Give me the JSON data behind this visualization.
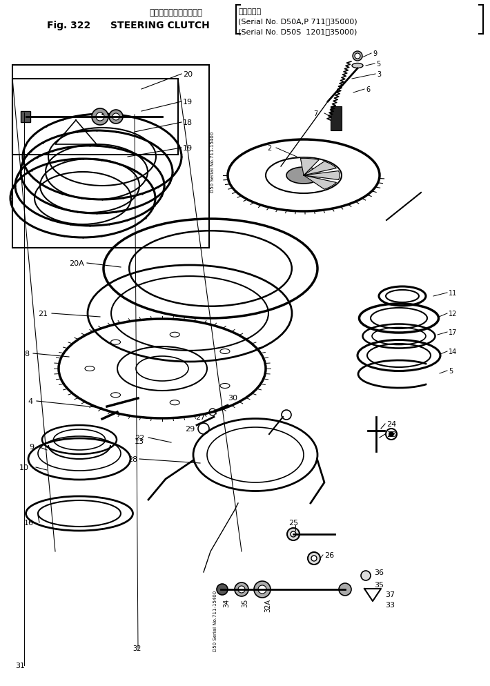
{
  "title_jp": "ステアリング　クラッチ",
  "title_en": "STEERING CLUTCH",
  "fig_num": "Fig. 322",
  "serial_label": "（適用号機",
  "serial_line2": "(Serial No. D50A,P 711～35000)",
  "serial_line3": "(Serial No. D50S  1201～35000)",
  "bg_color": "#ffffff",
  "line_color": "#000000",
  "fig_width": 7.1,
  "fig_height": 9.95,
  "dpi": 100
}
